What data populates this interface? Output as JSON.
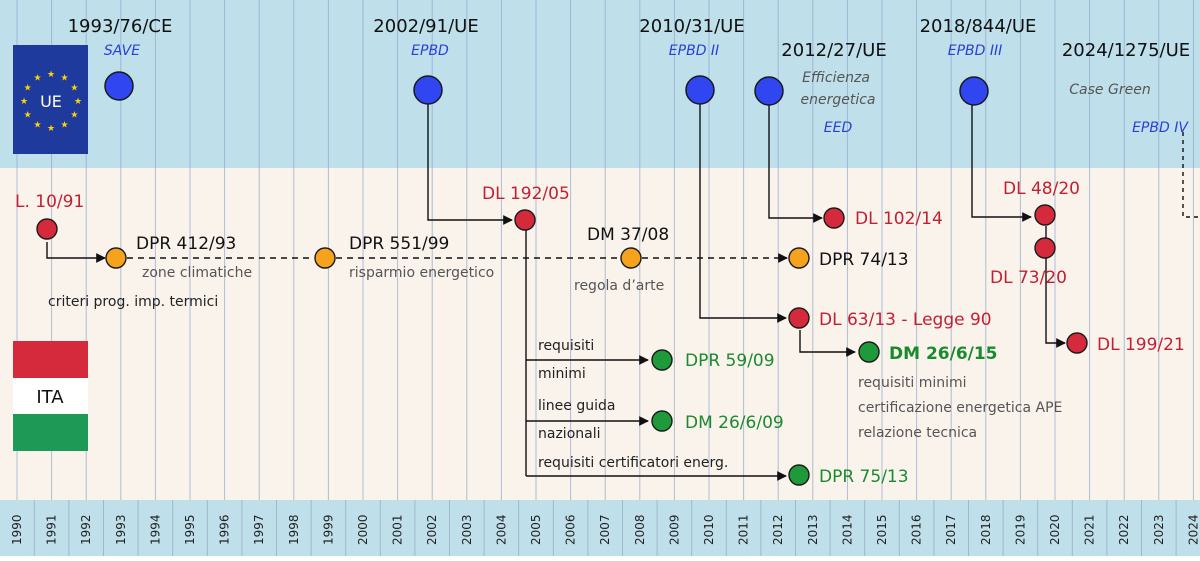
{
  "axis": {
    "years": [
      "1990",
      "1991",
      "1992",
      "1993",
      "1994",
      "1995",
      "1996",
      "1997",
      "1998",
      "1999",
      "2000",
      "2001",
      "2002",
      "2003",
      "2004",
      "2005",
      "2006",
      "2007",
      "2008",
      "2009",
      "2010",
      "2011",
      "2012",
      "2013",
      "2014",
      "2015",
      "2016",
      "2017",
      "2018",
      "2019",
      "2020",
      "2021",
      "2022",
      "2023",
      "2024"
    ]
  },
  "eu_badge": "UE",
  "ita_badge": "ITA",
  "eu_events": [
    {
      "code": "1993/76/CE",
      "sub": "SAVE",
      "note": ""
    },
    {
      "code": "2002/91/UE",
      "sub": "EPBD",
      "note": ""
    },
    {
      "code": "2010/31/UE",
      "sub": "EPBD II",
      "note": ""
    },
    {
      "code": "2012/27/UE",
      "sub": "EED",
      "note": "Efficienza energetica"
    },
    {
      "code": "2018/844/UE",
      "sub": "EPBD III",
      "note": ""
    },
    {
      "code": "2024/1275/UE",
      "sub": "EPBD IV",
      "note": "Case Green"
    }
  ],
  "it_events": {
    "l1091": "L. 10/91",
    "dpr41293": "DPR 412/93",
    "dpr55199": "DPR 551/99",
    "dl19205": "DL 192/05",
    "dm3708": "DM 37/08",
    "dl10214": "DL 102/14",
    "dpr7413": "DPR 74/13",
    "dl4820": "DL 48/20",
    "dl7320": "DL 73/20",
    "dl6313": "DL 63/13 - Legge 90",
    "dm26615": "DM 26/6/15",
    "dl19921": "DL 199/21",
    "dpr5909": "DPR 59/09",
    "dm26609": "DM 26/6/09",
    "dpr7513": "DPR 75/13"
  },
  "notes": {
    "zone": "zone climatiche",
    "criteri": "criteri prog. imp. termici",
    "risparmio": "risparmio energetico",
    "regola": "regola d’arte",
    "req_min_1": "requisiti",
    "req_min_2": "minimi",
    "linee_1": "linee guida",
    "linee_2": "nazionali",
    "certificatori": "requisiti certificatori energ.",
    "dm26615_1": "requisiti minimi",
    "dm26615_2": "certificazione energetica APE",
    "dm26615_3": "relazione tecnica"
  },
  "colors": {
    "eu_band": "#bfe0eb",
    "it_band": "#faf3ec",
    "axis_band": "#bfe0eb",
    "blue_node": "#2f46f0",
    "red_node": "#d42a3c",
    "orange_node": "#f5a21c",
    "green_node": "#1e9a3a",
    "grid": "#8fa6c9"
  }
}
